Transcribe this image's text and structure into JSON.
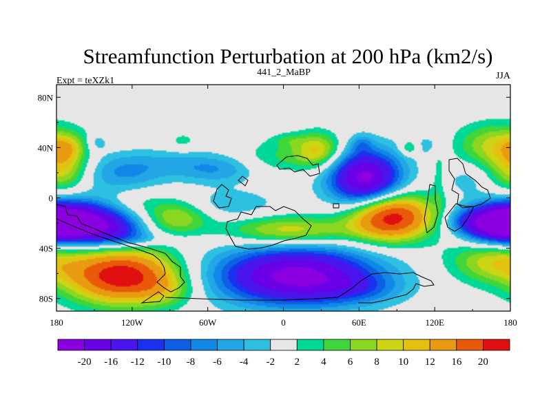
{
  "chart_data": {
    "type": "heatmap",
    "title": "Streamfunction Perturbation at 200 hPa (km2/s)",
    "left_label": "Expt = teXZk1",
    "center_label": "441_2_MaBP",
    "right_label": "JJA",
    "xlabel": "",
    "ylabel": "",
    "x_ticks": [
      {
        "value": -180,
        "label": "180"
      },
      {
        "value": -120,
        "label": "120W"
      },
      {
        "value": -60,
        "label": "60W"
      },
      {
        "value": 0,
        "label": "0"
      },
      {
        "value": 60,
        "label": "60E"
      },
      {
        "value": 120,
        "label": "120E"
      },
      {
        "value": 180,
        "label": "180"
      }
    ],
    "y_ticks": [
      {
        "value": 80,
        "label": "80N"
      },
      {
        "value": 40,
        "label": "40N"
      },
      {
        "value": 0,
        "label": "0"
      },
      {
        "value": -40,
        "label": "40S"
      },
      {
        "value": -80,
        "label": "80S"
      }
    ],
    "xlim": [
      -180,
      180
    ],
    "ylim": [
      -90,
      90
    ],
    "levels": [
      -20,
      -16,
      -12,
      -10,
      -8,
      -6,
      -4,
      -2,
      2,
      4,
      6,
      8,
      10,
      12,
      16,
      20
    ],
    "colors": [
      "#8a00e0",
      "#6a00e6",
      "#4a14ec",
      "#1a32f0",
      "#0d5fe6",
      "#1188e8",
      "#22a6e6",
      "#2ec0e0",
      "#e6e6e6",
      "#00d898",
      "#3ed63a",
      "#8ad620",
      "#ccd414",
      "#e4c010",
      "#e89a10",
      "#e85a0a",
      "#e01010"
    ],
    "features": [
      {
        "lon": 170,
        "lat": 42,
        "value": 9,
        "sx": 22,
        "sy": 12
      },
      {
        "lon": -175,
        "lat": 22,
        "value": 9,
        "sx": 14,
        "sy": 12
      },
      {
        "lon": -172,
        "lat": 40,
        "value": 5,
        "sx": 9,
        "sy": 7
      },
      {
        "lon": -128,
        "lat": 20,
        "value": -6,
        "sx": 24,
        "sy": 11
      },
      {
        "lon": -85,
        "lat": 28,
        "value": -3,
        "sx": 28,
        "sy": 8
      },
      {
        "lon": -52,
        "lat": 22,
        "value": -5,
        "sx": 22,
        "sy": 8
      },
      {
        "lon": -148,
        "lat": 44,
        "value": -4,
        "sx": 6,
        "sy": 5
      },
      {
        "lon": -80,
        "lat": 45,
        "value": 3,
        "sx": 8,
        "sy": 5
      },
      {
        "lon": -3,
        "lat": 33,
        "value": 4,
        "sx": 22,
        "sy": 9
      },
      {
        "lon": 28,
        "lat": 38,
        "value": 10,
        "sx": 13,
        "sy": 10
      },
      {
        "lon": 4,
        "lat": 46,
        "value": 3,
        "sx": 10,
        "sy": 4
      },
      {
        "lon": 65,
        "lat": 15,
        "value": -22,
        "sx": 20,
        "sy": 16
      },
      {
        "lon": 62,
        "lat": 43,
        "value": -4,
        "sx": 6,
        "sy": 5
      },
      {
        "lon": 100,
        "lat": 40,
        "value": 6,
        "sx": 5,
        "sy": 4
      },
      {
        "lon": 115,
        "lat": 42,
        "value": -3,
        "sx": 10,
        "sy": 6
      },
      {
        "lon": 145,
        "lat": 14,
        "value": -3,
        "sx": 12,
        "sy": 9
      },
      {
        "lon": 123,
        "lat": 14,
        "value": 3,
        "sx": 4,
        "sy": 18
      },
      {
        "lon": -160,
        "lat": -20,
        "value": -22,
        "sx": 26,
        "sy": 12
      },
      {
        "lon": -130,
        "lat": -27,
        "value": -6,
        "sx": 18,
        "sy": 8
      },
      {
        "lon": -118,
        "lat": -4,
        "value": 3,
        "sx": 22,
        "sy": 8
      },
      {
        "lon": -85,
        "lat": -16,
        "value": 8,
        "sx": 18,
        "sy": 9
      },
      {
        "lon": -40,
        "lat": -5,
        "value": -4,
        "sx": 24,
        "sy": 8
      },
      {
        "lon": 5,
        "lat": -26,
        "value": 10,
        "sx": 34,
        "sy": 8
      },
      {
        "lon": 85,
        "lat": -15,
        "value": 23,
        "sx": 23,
        "sy": 13
      },
      {
        "lon": 170,
        "lat": -20,
        "value": -22,
        "sx": 20,
        "sy": 10
      },
      {
        "lon": 142,
        "lat": -18,
        "value": -3,
        "sx": 12,
        "sy": 6
      },
      {
        "lon": -115,
        "lat": -33,
        "value": -3,
        "sx": 20,
        "sy": 4
      },
      {
        "lon": -128,
        "lat": -62,
        "value": 23,
        "sx": 30,
        "sy": 15
      },
      {
        "lon": -92,
        "lat": -74,
        "value": 4,
        "sx": 16,
        "sy": 9
      },
      {
        "lon": 10,
        "lat": -62,
        "value": -22,
        "sx": 44,
        "sy": 16
      },
      {
        "lon": 60,
        "lat": -72,
        "value": -4,
        "sx": 24,
        "sy": 8
      },
      {
        "lon": 167,
        "lat": -50,
        "value": 9,
        "sx": 25,
        "sy": 12
      }
    ]
  }
}
